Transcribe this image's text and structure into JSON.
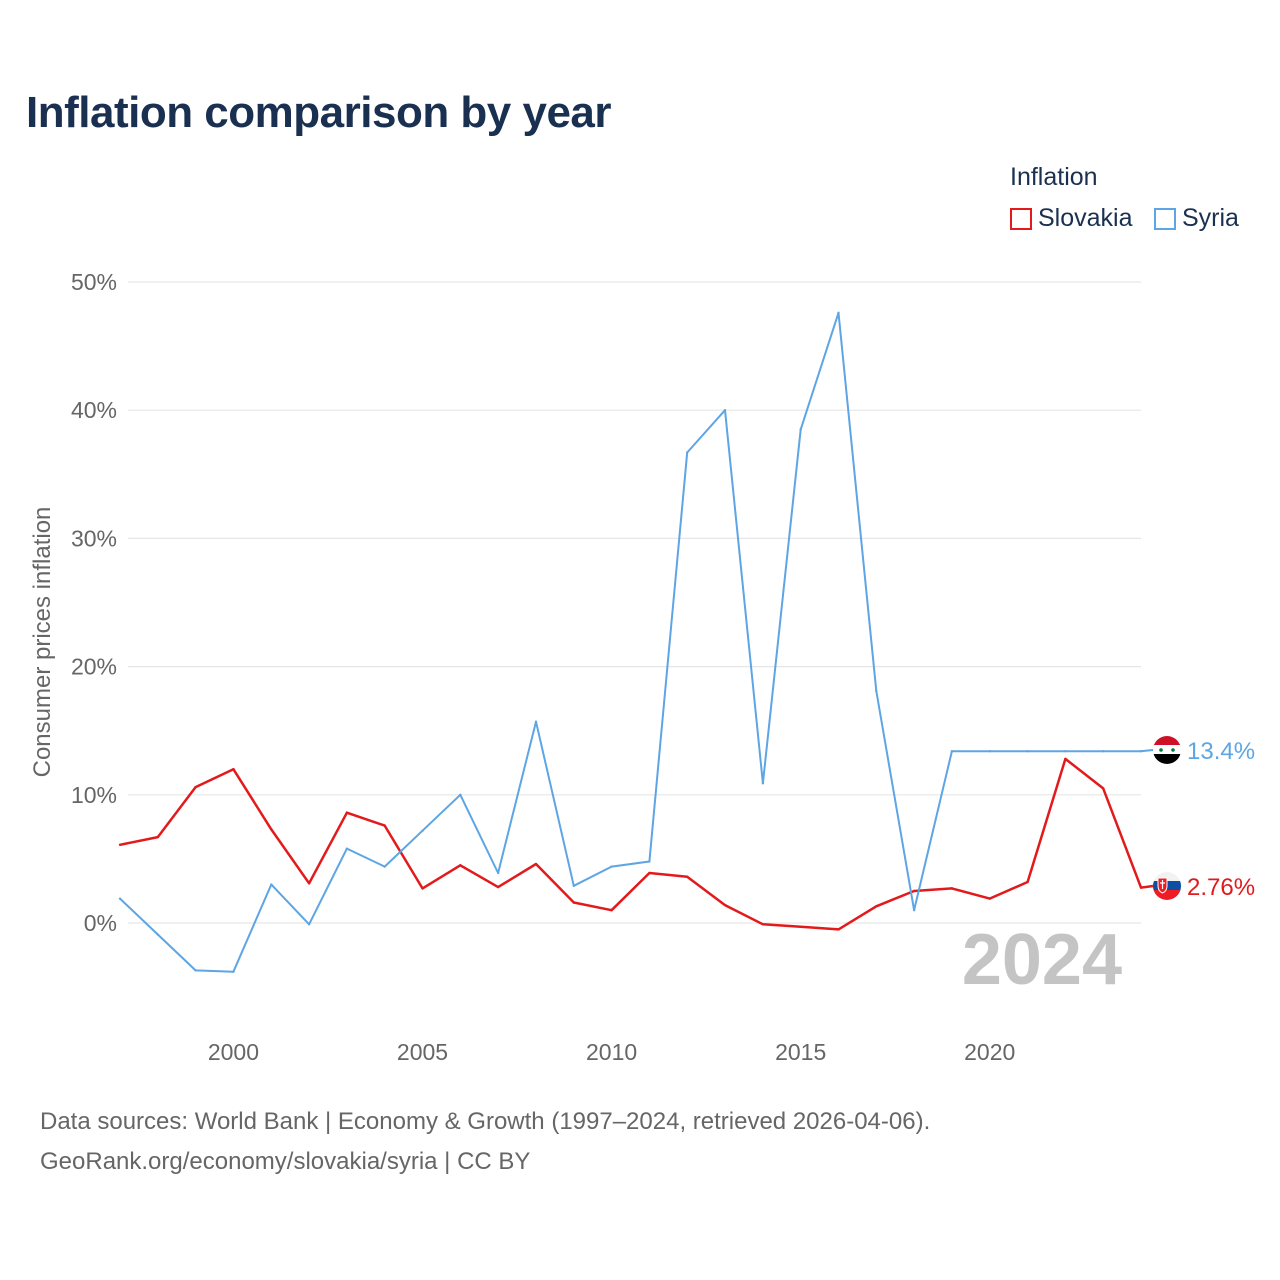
{
  "title": "Inflation comparison by year",
  "legend": {
    "title": "Inflation",
    "items": [
      {
        "label": "Slovakia",
        "color": "#e31a1c"
      },
      {
        "label": "Syria",
        "color": "#5da5e4"
      }
    ]
  },
  "source": {
    "line1": "Data sources: World Bank | Economy & Growth (1997–2024, retrieved 2026-04-06).",
    "line2": "GeoRank.org/economy/slovakia/syria | CC BY"
  },
  "year_label": "2024",
  "chart_data": {
    "type": "line",
    "title": "Inflation comparison by year",
    "xlabel": "",
    "ylabel": "Consumer prices inflation",
    "x": [
      1997,
      1998,
      1999,
      2000,
      2001,
      2002,
      2003,
      2004,
      2005,
      2006,
      2007,
      2008,
      2009,
      2010,
      2011,
      2012,
      2013,
      2014,
      2015,
      2016,
      2017,
      2018,
      2019,
      2020,
      2021,
      2022,
      2023,
      2024
    ],
    "xlim": [
      1997,
      2024
    ],
    "ylim": [
      -10,
      53
    ],
    "x_ticks": [
      2000,
      2005,
      2010,
      2015,
      2020
    ],
    "y_ticks": [
      0,
      10,
      20,
      30,
      40,
      50
    ],
    "y_tick_labels": [
      "0%",
      "10%",
      "20%",
      "30%",
      "40%",
      "50%"
    ],
    "series": [
      {
        "name": "Slovakia",
        "color": "#e31a1c",
        "values": [
          6.1,
          6.7,
          10.6,
          12.0,
          7.3,
          3.1,
          8.6,
          7.6,
          2.7,
          4.5,
          2.8,
          4.6,
          1.6,
          1.0,
          3.9,
          3.6,
          1.4,
          -0.1,
          -0.3,
          -0.5,
          1.3,
          2.5,
          2.7,
          1.9,
          3.2,
          12.8,
          10.5,
          2.76
        ],
        "end_label": "2.76%"
      },
      {
        "name": "Syria",
        "color": "#5da5e4",
        "values": [
          1.9,
          -0.9,
          -3.7,
          -3.8,
          3.0,
          -0.1,
          5.8,
          4.4,
          7.2,
          10.0,
          3.9,
          15.7,
          2.9,
          4.4,
          4.8,
          36.7,
          40.0,
          10.9,
          38.5,
          47.6,
          18.1,
          1.0,
          13.4,
          13.4,
          13.4,
          13.4,
          13.4,
          13.4
        ],
        "end_label": "13.4%"
      }
    ]
  }
}
